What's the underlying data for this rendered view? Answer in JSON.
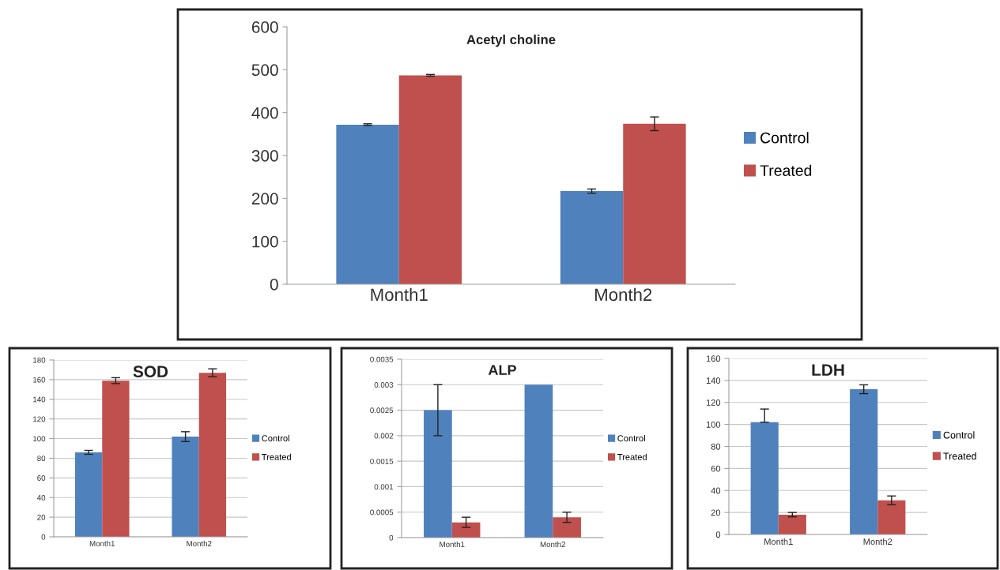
{
  "chart_data": [
    {
      "type": "bar",
      "title": "Acetyl choline",
      "categories": [
        "Month1",
        "Month2"
      ],
      "ylim": [
        0,
        600
      ],
      "yticks": [
        0,
        100,
        200,
        300,
        400,
        500,
        600
      ],
      "grid": false,
      "legend": "right",
      "series": [
        {
          "name": "Control",
          "color": "#4f81bd",
          "values": [
            372,
            217
          ],
          "errors": [
            2,
            5
          ]
        },
        {
          "name": "Treated",
          "color": "#c0504d",
          "values": [
            487,
            374
          ],
          "errors": [
            2,
            16
          ]
        }
      ]
    },
    {
      "type": "bar",
      "title": "SOD",
      "categories": [
        "Month1",
        "Month2"
      ],
      "ylim": [
        0,
        180
      ],
      "yticks": [
        0,
        20,
        40,
        60,
        80,
        100,
        120,
        140,
        160,
        180
      ],
      "grid": "y",
      "legend": "right",
      "series": [
        {
          "name": "Control",
          "color": "#4f81bd",
          "values": [
            86,
            102
          ],
          "errors": [
            2,
            5
          ]
        },
        {
          "name": "Treated",
          "color": "#c0504d",
          "values": [
            159,
            167
          ],
          "errors": [
            3,
            4
          ]
        }
      ]
    },
    {
      "type": "bar",
      "title": "ALP",
      "categories": [
        "Month1",
        "Month2"
      ],
      "ylim": [
        0,
        0.0035
      ],
      "yticks": [
        0,
        0.0005,
        0.001,
        0.0015,
        0.002,
        0.0025,
        0.003,
        0.0035
      ],
      "grid": "y",
      "legend": "right",
      "series": [
        {
          "name": "Control",
          "color": "#4f81bd",
          "values": [
            0.0025,
            0.003
          ],
          "errors": [
            0.0005,
            null
          ]
        },
        {
          "name": "Treated",
          "color": "#c0504d",
          "values": [
            0.0003,
            0.0004
          ],
          "errors": [
            0.0001,
            0.0001
          ]
        }
      ]
    },
    {
      "type": "bar",
      "title": "LDH",
      "categories": [
        "Month1",
        "Month2"
      ],
      "ylim": [
        0,
        160
      ],
      "yticks": [
        0,
        20,
        40,
        60,
        80,
        100,
        120,
        140,
        160
      ],
      "grid": "y",
      "legend": "right",
      "series": [
        {
          "name": "Control",
          "color": "#4f81bd",
          "values": [
            102,
            132
          ],
          "errors": [
            [
              102,
              114
            ],
            4
          ]
        },
        {
          "name": "Treated",
          "color": "#c0504d",
          "values": [
            18,
            31
          ],
          "errors": [
            2,
            4
          ]
        }
      ]
    }
  ]
}
